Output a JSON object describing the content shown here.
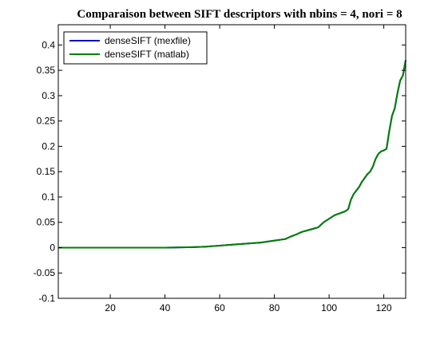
{
  "chart_data": {
    "type": "line",
    "title": "Comparaison between SIFT descriptors with nbins = 4, nori = 8",
    "xlabel": "",
    "ylabel": "",
    "xlim": [
      1,
      128
    ],
    "ylim": [
      -0.1,
      0.44
    ],
    "x_ticks": [
      20,
      40,
      60,
      80,
      100,
      120
    ],
    "y_ticks": [
      -0.1,
      -0.05,
      0,
      0.05,
      0.1,
      0.15,
      0.2,
      0.25,
      0.3,
      0.35,
      0.4
    ],
    "grid": false,
    "legend": {
      "position": "top-left"
    },
    "series": [
      {
        "name": "denseSIFT (mexfile)",
        "color": "#0000c0",
        "x": [
          1,
          10,
          20,
          30,
          40,
          50,
          55,
          60,
          65,
          70,
          75,
          80,
          84,
          86,
          88,
          90,
          92,
          94,
          96,
          97,
          98,
          100,
          102,
          104,
          106,
          107,
          108,
          109,
          110,
          111,
          112,
          114,
          115,
          116,
          117,
          118,
          119,
          120,
          121,
          122,
          123,
          124,
          125,
          126,
          127,
          128
        ],
        "values": [
          0,
          0,
          0,
          0,
          0,
          0.001,
          0.002,
          0.004,
          0.006,
          0.008,
          0.01,
          0.014,
          0.017,
          0.022,
          0.026,
          0.031,
          0.034,
          0.037,
          0.04,
          0.045,
          0.05,
          0.057,
          0.064,
          0.068,
          0.072,
          0.076,
          0.095,
          0.106,
          0.113,
          0.12,
          0.13,
          0.145,
          0.15,
          0.16,
          0.175,
          0.185,
          0.19,
          0.192,
          0.195,
          0.23,
          0.26,
          0.275,
          0.305,
          0.33,
          0.34,
          0.37
        ]
      },
      {
        "name": "denseSIFT (matlab)",
        "color": "#008000",
        "x": [
          1,
          10,
          20,
          30,
          40,
          50,
          55,
          60,
          65,
          70,
          75,
          80,
          84,
          86,
          88,
          90,
          92,
          94,
          96,
          97,
          98,
          100,
          102,
          104,
          106,
          107,
          108,
          109,
          110,
          111,
          112,
          114,
          115,
          116,
          117,
          118,
          119,
          120,
          121,
          122,
          123,
          124,
          125,
          126,
          127,
          128
        ],
        "values": [
          0,
          0,
          0,
          0,
          0,
          0.001,
          0.002,
          0.004,
          0.006,
          0.008,
          0.01,
          0.014,
          0.017,
          0.022,
          0.026,
          0.031,
          0.034,
          0.037,
          0.04,
          0.045,
          0.05,
          0.057,
          0.064,
          0.068,
          0.072,
          0.076,
          0.095,
          0.106,
          0.113,
          0.12,
          0.13,
          0.145,
          0.15,
          0.16,
          0.175,
          0.185,
          0.19,
          0.192,
          0.195,
          0.23,
          0.26,
          0.275,
          0.305,
          0.33,
          0.34,
          0.37
        ]
      }
    ]
  }
}
